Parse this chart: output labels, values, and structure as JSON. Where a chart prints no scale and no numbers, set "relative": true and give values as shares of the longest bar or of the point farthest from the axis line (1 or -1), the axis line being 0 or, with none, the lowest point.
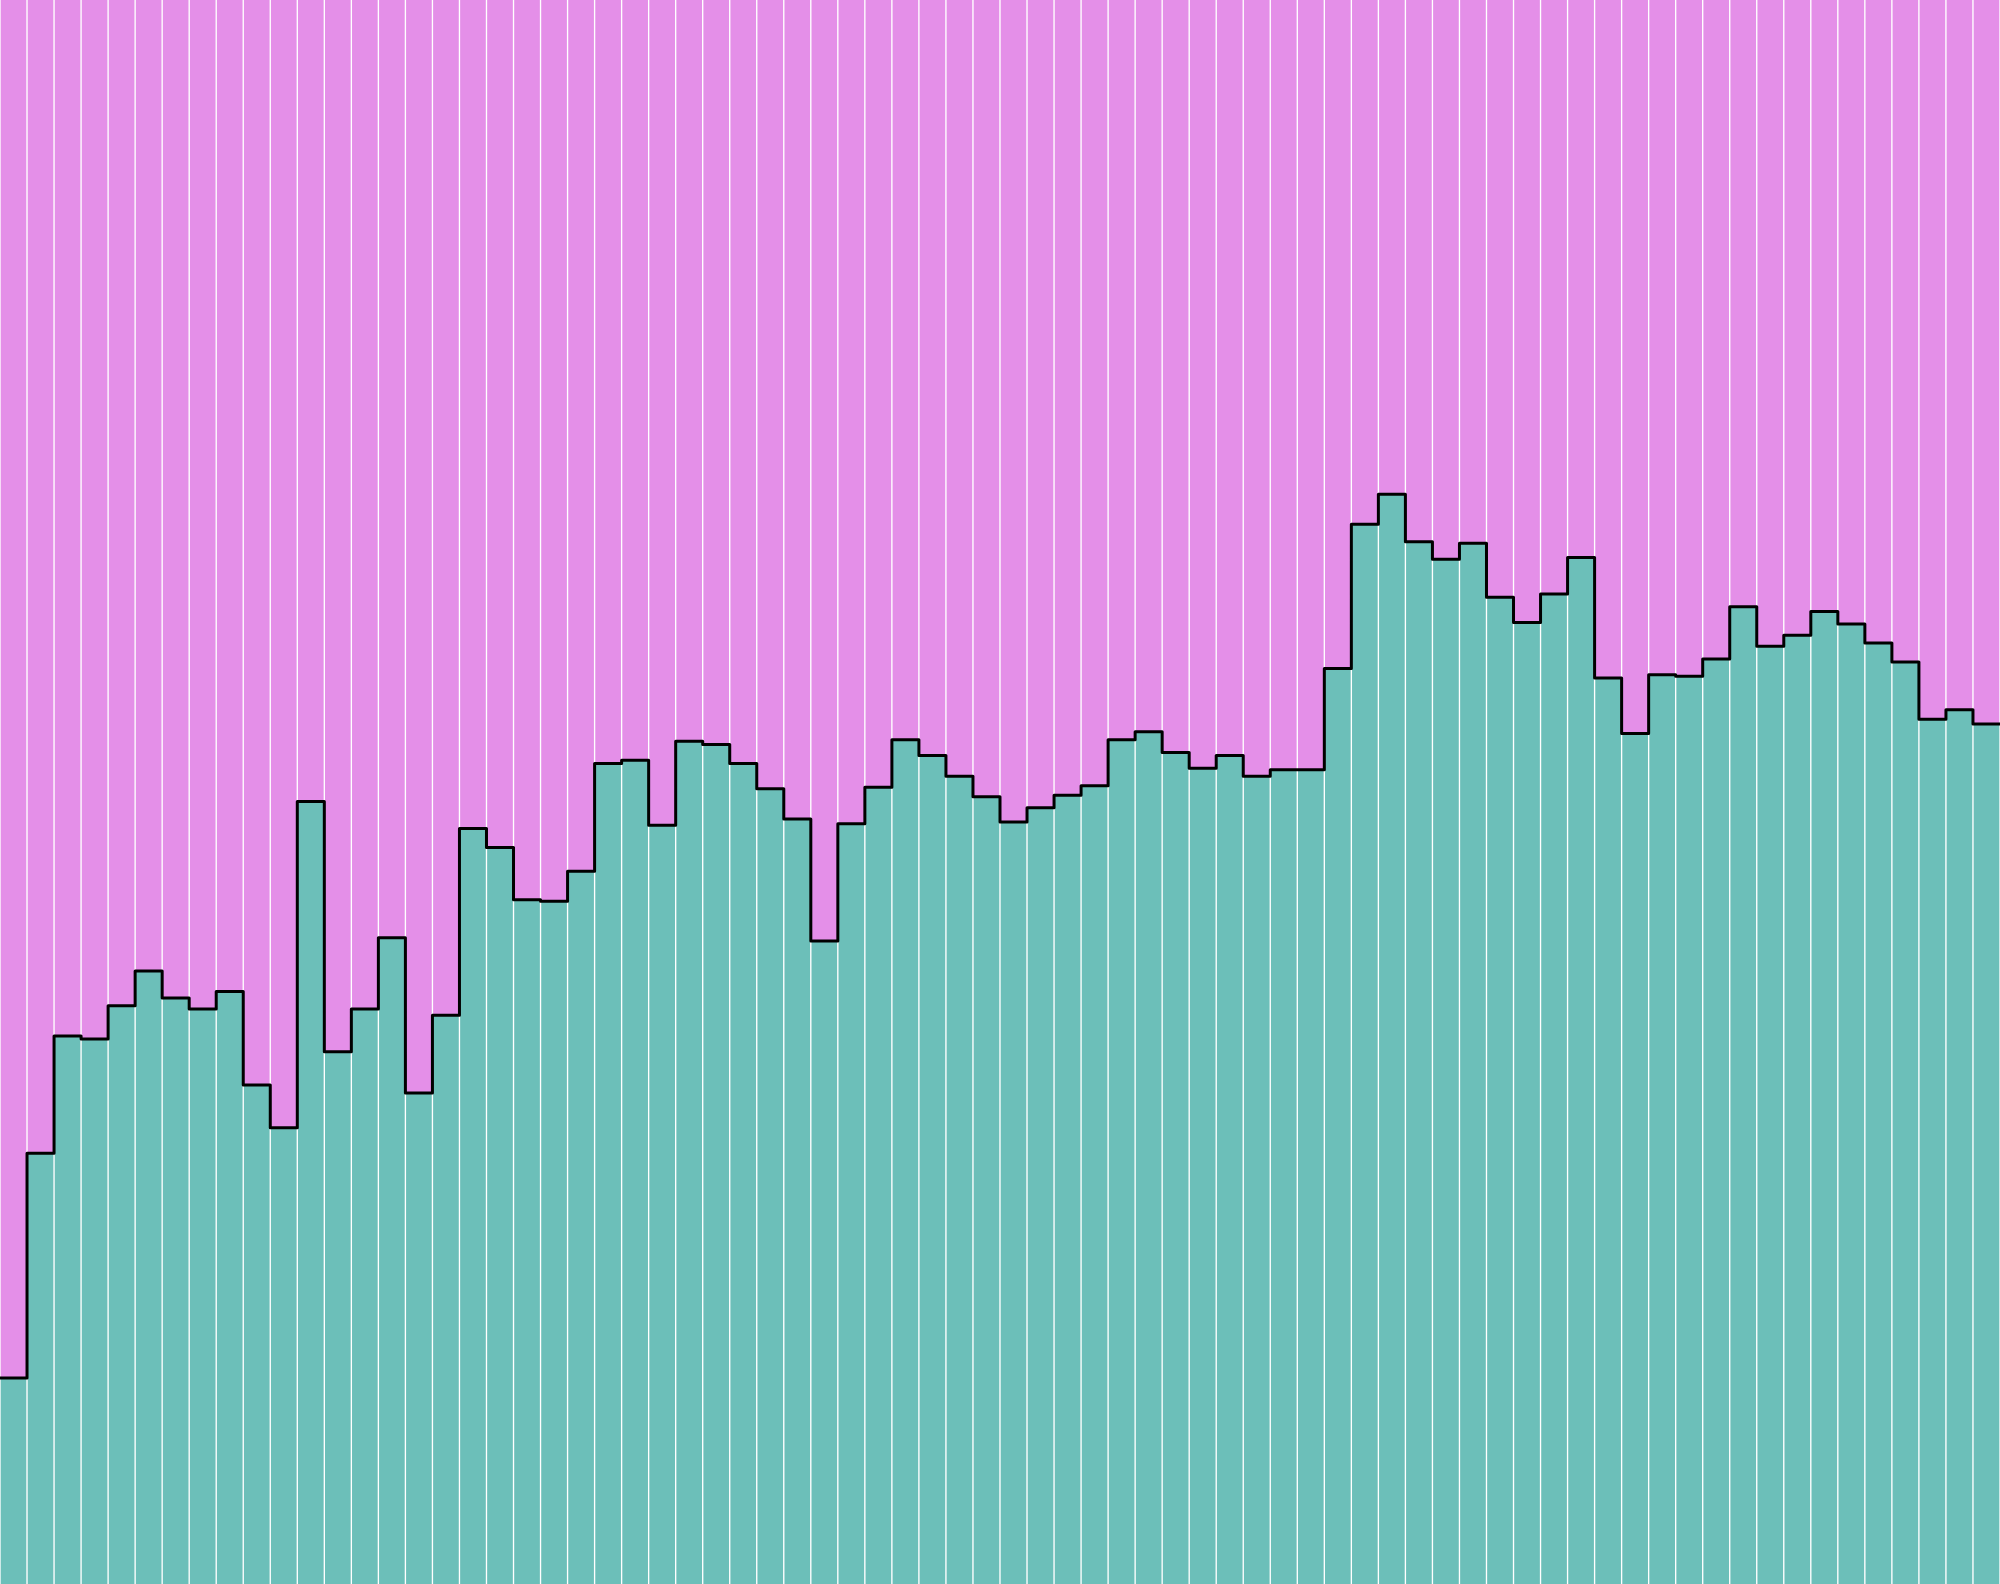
{
  "chart_data": {
    "type": "bar",
    "stacked": true,
    "relative": true,
    "categories": [
      null,
      null,
      null,
      null,
      null,
      null,
      null,
      null,
      null,
      null,
      null,
      null,
      null,
      null,
      null,
      null,
      null,
      null,
      null,
      null,
      null,
      null,
      null,
      null,
      null,
      null,
      null,
      null,
      null,
      null,
      null,
      null,
      null,
      null,
      null,
      null,
      null,
      null,
      null,
      null,
      null,
      null,
      null,
      null,
      null,
      null,
      null,
      null,
      null,
      null,
      null,
      null,
      null,
      null,
      null,
      null,
      null,
      null,
      null,
      null,
      null,
      null,
      null,
      null,
      null,
      null,
      null,
      null,
      null,
      null,
      null,
      null,
      null,
      null
    ],
    "series": [
      {
        "color": "#6cbfb9",
        "values": [
          0.13,
          0.272,
          0.346,
          0.344,
          0.365,
          0.387,
          0.37,
          0.363,
          0.374,
          0.315,
          0.288,
          0.494,
          0.336,
          0.363,
          0.408,
          0.31,
          0.359,
          0.477,
          0.465,
          0.432,
          0.431,
          0.45,
          0.518,
          0.52,
          0.479,
          0.532,
          0.53,
          0.518,
          0.502,
          0.483,
          0.406,
          0.48,
          0.503,
          0.533,
          0.523,
          0.51,
          0.497,
          0.481,
          0.49,
          0.498,
          0.504,
          0.533,
          0.538,
          0.525,
          0.515,
          0.523,
          0.51,
          0.514,
          0.514,
          0.578,
          0.669,
          0.688,
          0.658,
          0.647,
          0.657,
          0.623,
          0.607,
          0.625,
          0.648,
          0.572,
          0.537,
          0.574,
          0.573,
          0.584,
          0.617,
          0.592,
          0.599,
          0.614,
          0.606,
          0.594,
          0.582,
          0.546,
          0.552,
          0.543
        ]
      },
      {
        "color": "#e48fe8",
        "values": [
          0.87,
          0.728,
          0.654,
          0.656,
          0.635,
          0.613,
          0.63,
          0.637,
          0.626,
          0.685,
          0.712,
          0.506,
          0.664,
          0.637,
          0.592,
          0.69,
          0.641,
          0.523,
          0.535,
          0.568,
          0.569,
          0.55,
          0.482,
          0.48,
          0.521,
          0.468,
          0.47,
          0.482,
          0.498,
          0.517,
          0.594,
          0.52,
          0.497,
          0.467,
          0.477,
          0.49,
          0.503,
          0.519,
          0.51,
          0.502,
          0.496,
          0.467,
          0.462,
          0.475,
          0.485,
          0.477,
          0.49,
          0.486,
          0.486,
          0.422,
          0.331,
          0.312,
          0.342,
          0.353,
          0.343,
          0.377,
          0.393,
          0.375,
          0.352,
          0.428,
          0.463,
          0.426,
          0.427,
          0.416,
          0.383,
          0.408,
          0.401,
          0.386,
          0.394,
          0.406,
          0.418,
          0.454,
          0.448,
          0.457
        ]
      }
    ]
  }
}
